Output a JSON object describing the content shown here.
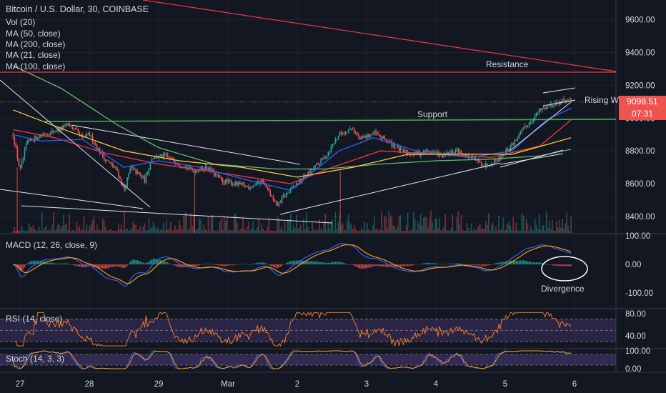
{
  "header": {
    "title": "Bitcoin / U.S. Dollar, 30, COINBASE",
    "indicators": [
      "Vol (20)",
      "MA (50, close)",
      "MA (200, close)",
      "MA (21, close)",
      "MA (100, close)"
    ]
  },
  "price_axis": {
    "ticks": [
      "9600.00",
      "9400.00",
      "9200.00",
      "9000.00",
      "8800.00",
      "8600.00",
      "8400.00"
    ]
  },
  "last_price": {
    "value": "9098.51",
    "countdown": "07:31"
  },
  "annotations": {
    "resistance": "Resistance",
    "support": "Support",
    "rising": "Rising W",
    "divergence": "Divergence"
  },
  "macd": {
    "label": "MACD (12, 26, close, 9)",
    "ticks": [
      "100.00",
      "0.00",
      "-100.00"
    ]
  },
  "rsi": {
    "label": "RSI (14, close)",
    "ticks": [
      "80.00",
      "40.00"
    ]
  },
  "stoch": {
    "label": "Stoch (14, 3, 3)",
    "ticks": [
      "100.00",
      "0.00"
    ]
  },
  "time_axis": {
    "ticks": [
      "27",
      "28",
      "29",
      "Mar",
      "2",
      "3",
      "4",
      "5",
      "6"
    ]
  },
  "colors": {
    "background": "#131722",
    "up": "#26a69a",
    "down": "#ef5350",
    "ma50": "#f23645",
    "ma200": "#66bb6a",
    "ma21": "#2962ff",
    "ma100": "#f5c542"
  },
  "chart_data": {
    "type": "candlestick",
    "title": "Bitcoin / U.S. Dollar, 30, COINBASE",
    "ylim": [
      8300,
      9720
    ],
    "x": [
      "27",
      "28",
      "29",
      "Mar",
      "2",
      "3",
      "4",
      "5",
      "6"
    ],
    "close_path": [
      {
        "x": "26.9",
        "y": 8900
      },
      {
        "x": "27",
        "y": 8680
      },
      {
        "x": "27.1",
        "y": 8850
      },
      {
        "x": "27.3",
        "y": 8900
      },
      {
        "x": "27.5",
        "y": 8920
      },
      {
        "x": "27.7",
        "y": 8960
      },
      {
        "x": "27.9",
        "y": 8880
      },
      {
        "x": "28",
        "y": 8900
      },
      {
        "x": "28.2",
        "y": 8760
      },
      {
        "x": "28.4",
        "y": 8680
      },
      {
        "x": "28.5",
        "y": 8560
      },
      {
        "x": "28.6",
        "y": 8700
      },
      {
        "x": "28.8",
        "y": 8620
      },
      {
        "x": "28.9",
        "y": 8760
      },
      {
        "x": "29.1",
        "y": 8770
      },
      {
        "x": "29.3",
        "y": 8720
      },
      {
        "x": "29.5",
        "y": 8680
      },
      {
        "x": "29.7",
        "y": 8700
      },
      {
        "x": "29.9",
        "y": 8620
      },
      {
        "x": "30.1",
        "y": 8600
      },
      {
        "x": "30.3",
        "y": 8580
      },
      {
        "x": "30.5",
        "y": 8620
      },
      {
        "x": "30.7",
        "y": 8460
      },
      {
        "x": "30.8",
        "y": 8520
      },
      {
        "x": "31",
        "y": 8600
      },
      {
        "x": "31.2",
        "y": 8680
      },
      {
        "x": "31.4",
        "y": 8760
      },
      {
        "x": "31.6",
        "y": 8900
      },
      {
        "x": "31.8",
        "y": 8940
      },
      {
        "x": "31.9",
        "y": 8870
      },
      {
        "x": "32.1",
        "y": 8910
      },
      {
        "x": "32.3",
        "y": 8860
      },
      {
        "x": "32.5",
        "y": 8800
      },
      {
        "x": "32.7",
        "y": 8780
      },
      {
        "x": "32.9",
        "y": 8800
      },
      {
        "x": "33.1",
        "y": 8770
      },
      {
        "x": "33.3",
        "y": 8800
      },
      {
        "x": "33.5",
        "y": 8760
      },
      {
        "x": "33.7",
        "y": 8710
      },
      {
        "x": "33.9",
        "y": 8750
      },
      {
        "x": "34.1",
        "y": 8840
      },
      {
        "x": "34.3",
        "y": 8950
      },
      {
        "x": "34.5",
        "y": 9050
      },
      {
        "x": "34.7",
        "y": 9090
      },
      {
        "x": "34.9",
        "y": 9110
      },
      {
        "x": "34.95",
        "y": 9098
      }
    ],
    "lines": [
      {
        "name": "MA (50, close)",
        "color": "#f23645",
        "points": [
          {
            "x": "26.9",
            "y": 8930
          },
          {
            "x": "27.5",
            "y": 8880
          },
          {
            "x": "28.2",
            "y": 8790
          },
          {
            "x": "29",
            "y": 8720
          },
          {
            "x": "30",
            "y": 8660
          },
          {
            "x": "30.9",
            "y": 8600
          },
          {
            "x": "31.5",
            "y": 8700
          },
          {
            "x": "32.2",
            "y": 8800
          },
          {
            "x": "33",
            "y": 8780
          },
          {
            "x": "33.8",
            "y": 8760
          },
          {
            "x": "34.5",
            "y": 8830
          },
          {
            "x": "34.95",
            "y": 8990
          }
        ]
      },
      {
        "name": "MA (200, close)",
        "color": "#66bb6a",
        "points": [
          {
            "x": "26.9",
            "y": 9320
          },
          {
            "x": "27.6",
            "y": 9180
          },
          {
            "x": "28.4",
            "y": 8960
          },
          {
            "x": "29",
            "y": 8820
          },
          {
            "x": "29.8",
            "y": 8720
          },
          {
            "x": "30.7",
            "y": 8690
          },
          {
            "x": "31.4",
            "y": 8690
          },
          {
            "x": "32.2",
            "y": 8720
          },
          {
            "x": "33",
            "y": 8740
          },
          {
            "x": "33.8",
            "y": 8750
          },
          {
            "x": "34.5",
            "y": 8770
          },
          {
            "x": "34.95",
            "y": 8810
          }
        ]
      },
      {
        "name": "MA (21, close)",
        "color": "#2962ff",
        "points": [
          {
            "x": "26.9",
            "y": 8900
          },
          {
            "x": "27.3",
            "y": 8860
          },
          {
            "x": "27.9",
            "y": 8870
          },
          {
            "x": "28.5",
            "y": 8700
          },
          {
            "x": "29",
            "y": 8740
          },
          {
            "x": "29.6",
            "y": 8700
          },
          {
            "x": "30.3",
            "y": 8620
          },
          {
            "x": "30.9",
            "y": 8560
          },
          {
            "x": "31.6",
            "y": 8800
          },
          {
            "x": "32.1",
            "y": 8880
          },
          {
            "x": "32.8",
            "y": 8790
          },
          {
            "x": "33.5",
            "y": 8760
          },
          {
            "x": "34.1",
            "y": 8800
          },
          {
            "x": "34.6",
            "y": 8990
          },
          {
            "x": "34.95",
            "y": 9060
          }
        ]
      },
      {
        "name": "MA (100, close)",
        "color": "#f5c542",
        "points": [
          {
            "x": "26.9",
            "y": 9050
          },
          {
            "x": "27.7",
            "y": 8920
          },
          {
            "x": "28.5",
            "y": 8800
          },
          {
            "x": "29.3",
            "y": 8740
          },
          {
            "x": "30.2",
            "y": 8700
          },
          {
            "x": "31",
            "y": 8640
          },
          {
            "x": "31.8",
            "y": 8700
          },
          {
            "x": "32.6",
            "y": 8780
          },
          {
            "x": "33.4",
            "y": 8780
          },
          {
            "x": "34.1",
            "y": 8780
          },
          {
            "x": "34.95",
            "y": 8880
          }
        ]
      }
    ],
    "levels": [
      {
        "name": "Resistance",
        "y": 9280,
        "color": "#f23645"
      },
      {
        "name": "Support",
        "y": 8990,
        "color": "#4caf50"
      }
    ]
  }
}
